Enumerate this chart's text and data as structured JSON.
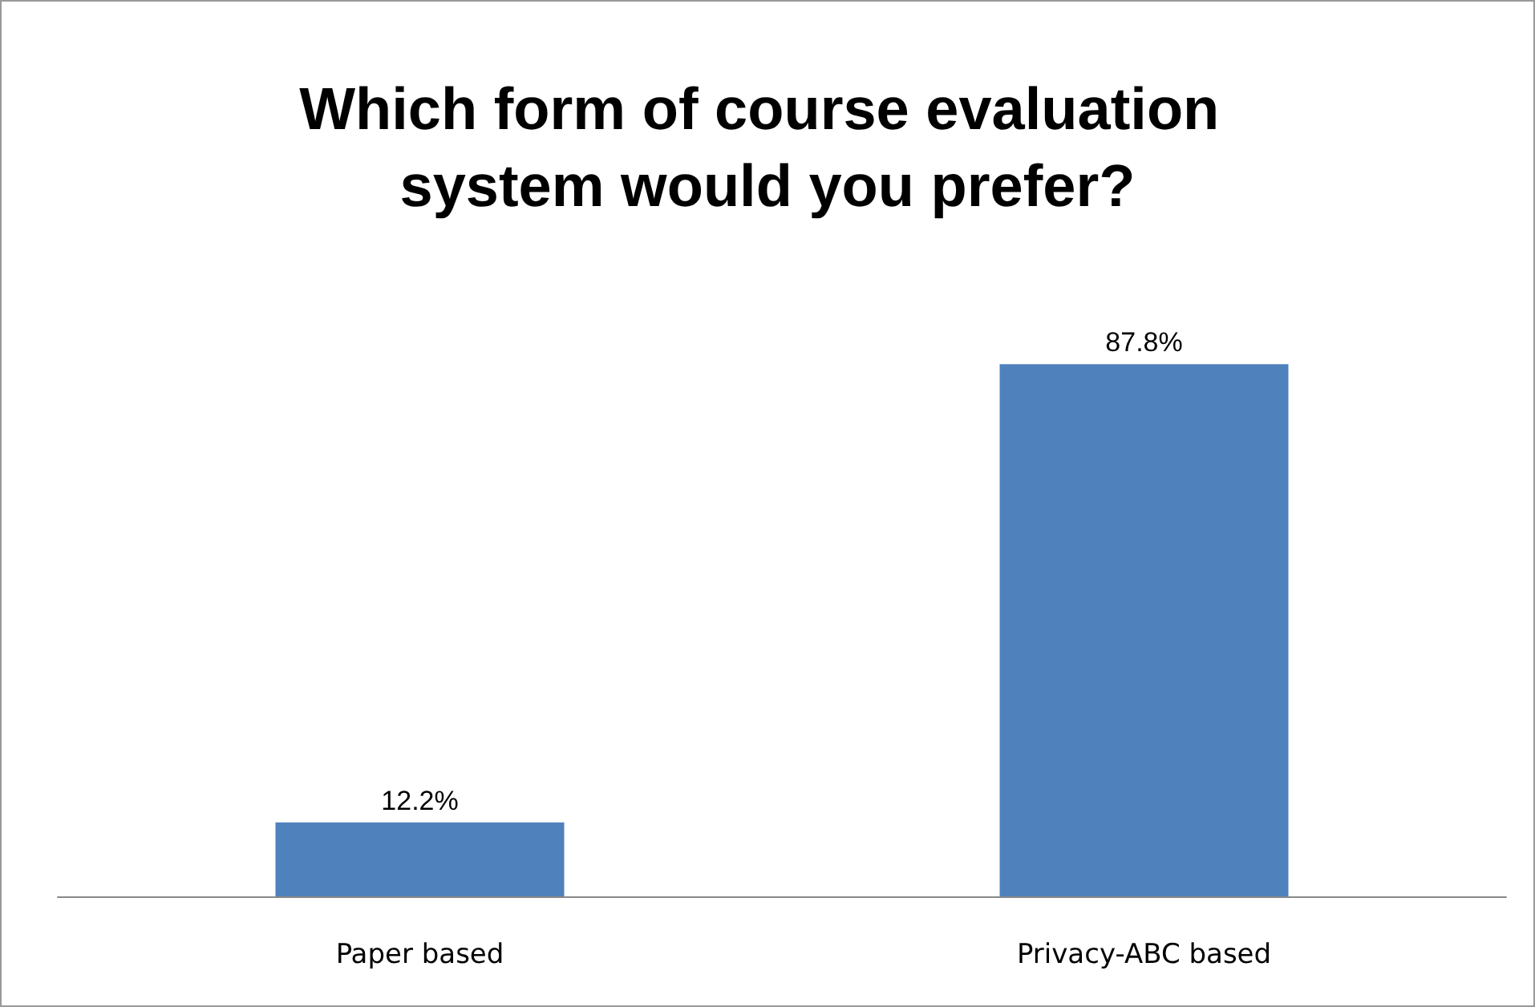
{
  "chart_data": {
    "type": "bar",
    "title": "Which form of course evaluation system would you prefer?",
    "categories": [
      "Paper based",
      "Privacy-ABC based"
    ],
    "values": [
      12.2,
      87.8
    ],
    "value_labels": [
      "12.2%",
      "87.8%"
    ],
    "color": "#4f81bd",
    "tick_labels": "x"
  }
}
